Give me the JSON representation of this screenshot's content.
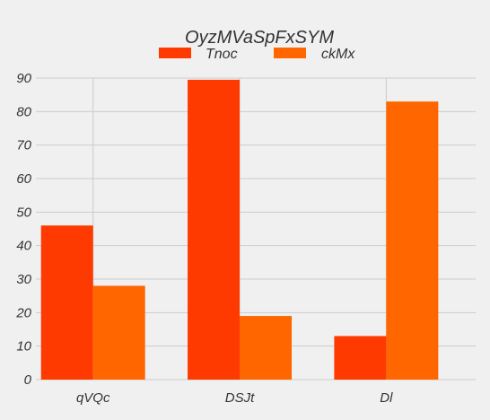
{
  "chart_data": {
    "type": "bar",
    "title": "OyzMVaSpFxSYM",
    "xlabel": "",
    "ylabel": "",
    "categories": [
      "qVQc",
      "DSJt",
      "Dl"
    ],
    "series": [
      {
        "name": "Tnoc",
        "values": [
          46,
          89.5,
          13
        ],
        "color": "#ff3a00"
      },
      {
        "name": "ckMx",
        "values": [
          28,
          19,
          83
        ],
        "color": "#ff6600"
      }
    ],
    "ylim": [
      0,
      90
    ],
    "yticks": [
      0,
      10,
      20,
      30,
      40,
      50,
      60,
      70,
      80,
      90
    ],
    "grid": true,
    "legend": "top-center"
  }
}
